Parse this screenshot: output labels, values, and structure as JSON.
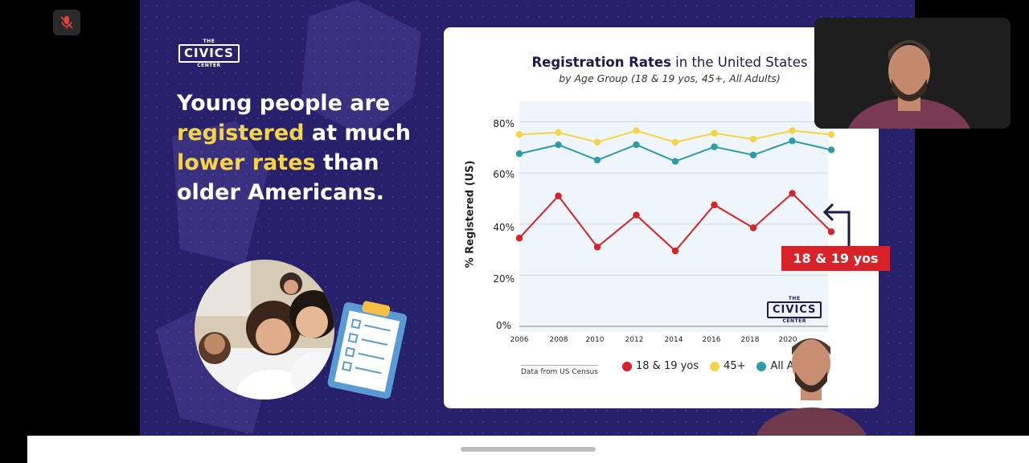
{
  "brand": {
    "the": "THE",
    "name": "CIVICS",
    "center": "CENTER"
  },
  "headline": {
    "line1": "Young people are",
    "hl1": "registered",
    "line2_rest": " at much",
    "hl2": "lower rates",
    "line3_rest": " than",
    "line4": "older Americans."
  },
  "chart_data": {
    "type": "line",
    "title_bold": "Registration Rates",
    "title_rest": " in the United States",
    "subtitle": "by Age Group (18 & 19 yos, 45+, All Adults)",
    "ylabel": "% Registered (US)",
    "xlabel": "",
    "x": [
      2006,
      2008,
      2010,
      2012,
      2014,
      2016,
      2018,
      2020,
      2022
    ],
    "x_tick_labels": [
      "2006",
      "2008",
      "2010",
      "2012",
      "2014",
      "2016",
      "2018",
      "2020"
    ],
    "y_tick_labels": [
      "0%",
      "20%",
      "40%",
      "60%",
      "80%"
    ],
    "ylim": [
      0,
      88
    ],
    "grid": true,
    "series": [
      {
        "name": "18 & 19 yos",
        "color": "#d8222a",
        "values": [
          34.5,
          51,
          31,
          43.5,
          29.5,
          47.5,
          38.5,
          52,
          37
        ]
      },
      {
        "name": "45+",
        "color": "#f5d547",
        "values": [
          75,
          75.8,
          72,
          76.5,
          72,
          75.5,
          73.2,
          76.5,
          75
        ]
      },
      {
        "name": "All Adults",
        "color": "#2e9ba6",
        "values": [
          67.5,
          71,
          65,
          71,
          64.5,
          70.2,
          67,
          72.5,
          69
        ]
      }
    ],
    "legend_visible": [
      "18 & 19 yos",
      "45+",
      "All A"
    ],
    "legend_placement": "bottom",
    "source": "Data from US Census",
    "callout": "18 & 19 yos"
  },
  "icons": {
    "mic": "mic-muted-icon",
    "clipboard": "clipboard-icon"
  }
}
